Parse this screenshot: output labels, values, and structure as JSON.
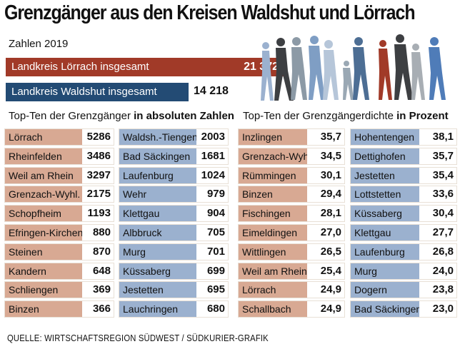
{
  "title": "Grenzgänger aus den Kreisen Waldshut und Lörrach",
  "year_label": "Zahlen 2019",
  "totals": {
    "loerrach_label": "Landkreis Lörrach insgesamt",
    "loerrach_value": "21 372",
    "waldshut_label": "Landkreis Waldshut insgesamt",
    "waldshut_value": "14 218"
  },
  "headings": {
    "absolute_prefix": "Top-Ten der Grenzgänger",
    "absolute_bold": "in absoluten Zahlen",
    "density_prefix": "Top-Ten der Grenzgängerdichte",
    "density_bold": "in Prozent"
  },
  "source": "QUELLE: WIRTSCHAFTSREGION SÜDWEST / SÜDKURIER-GRAFIK",
  "colors": {
    "loerrach": "#a13a28",
    "waldshut": "#234b74",
    "loerrach_row": "#d8a993",
    "waldshut_row": "#9bb1cf"
  },
  "chart_data": {
    "type": "table",
    "totals": [
      {
        "name": "Landkreis Lörrach insgesamt",
        "value": 21372
      },
      {
        "name": "Landkreis Waldshut insgesamt",
        "value": 14218
      }
    ],
    "absolute_loerrach": [
      {
        "name": "Lörrach",
        "value": "5286"
      },
      {
        "name": "Rheinfelden",
        "value": "3486"
      },
      {
        "name": "Weil am Rhein",
        "value": "3297"
      },
      {
        "name": "Grenzach-Wyhl.",
        "value": "2175"
      },
      {
        "name": "Schopfheim",
        "value": "1193"
      },
      {
        "name": "Efringen-Kirchen",
        "value": "880"
      },
      {
        "name": "Steinen",
        "value": "870"
      },
      {
        "name": "Kandern",
        "value": "648"
      },
      {
        "name": "Schliengen",
        "value": "369"
      },
      {
        "name": "Binzen",
        "value": "366"
      }
    ],
    "absolute_waldshut": [
      {
        "name": "Waldsh.-Tiengen",
        "value": "2003"
      },
      {
        "name": "Bad Säckingen",
        "value": "1681"
      },
      {
        "name": "Laufenburg",
        "value": "1024"
      },
      {
        "name": "Wehr",
        "value": "979"
      },
      {
        "name": "Klettgau",
        "value": "904"
      },
      {
        "name": "Albbruck",
        "value": "705"
      },
      {
        "name": "Murg",
        "value": "701"
      },
      {
        "name": "Küssaberg",
        "value": "699"
      },
      {
        "name": "Jestetten",
        "value": "695"
      },
      {
        "name": "Lauchringen",
        "value": "680"
      }
    ],
    "density_loerrach": [
      {
        "name": "Inzlingen",
        "value": "35,7"
      },
      {
        "name": "Grenzach-Wyhl.",
        "value": "34,5"
      },
      {
        "name": "Rümmingen",
        "value": "30,1"
      },
      {
        "name": "Binzen",
        "value": "29,4"
      },
      {
        "name": "Fischingen",
        "value": "28,1"
      },
      {
        "name": "Eimeldingen",
        "value": "27,0"
      },
      {
        "name": "Wittlingen",
        "value": "26,5"
      },
      {
        "name": "Weil am Rhein",
        "value": "25,4"
      },
      {
        "name": "Lörrach",
        "value": "24,9"
      },
      {
        "name": "Schallbach",
        "value": "24,9"
      }
    ],
    "density_waldshut": [
      {
        "name": "Hohentengen",
        "value": "38,1"
      },
      {
        "name": "Dettighofen",
        "value": "35,7"
      },
      {
        "name": "Jestetten",
        "value": "35,4"
      },
      {
        "name": "Lottstetten",
        "value": "33,6"
      },
      {
        "name": "Küssaberg",
        "value": "30,4"
      },
      {
        "name": "Klettgau",
        "value": "27,7"
      },
      {
        "name": "Laufenburg",
        "value": "26,8"
      },
      {
        "name": "Murg",
        "value": "24,0"
      },
      {
        "name": "Dogern",
        "value": "23,8"
      },
      {
        "name": "Bad Säckingen",
        "value": "23,0"
      }
    ]
  }
}
